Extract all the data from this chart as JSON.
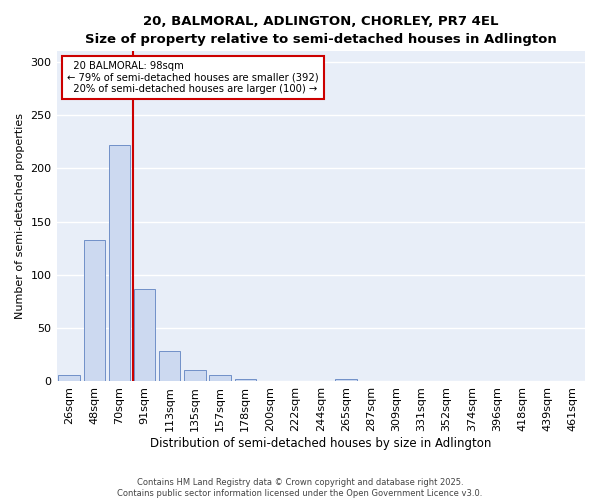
{
  "title_line1": "20, BALMORAL, ADLINGTON, CHORLEY, PR7 4EL",
  "title_line2": "Size of property relative to semi-detached houses in Adlington",
  "xlabel": "Distribution of semi-detached houses by size in Adlington",
  "ylabel": "Number of semi-detached properties",
  "categories": [
    "26sqm",
    "48sqm",
    "70sqm",
    "91sqm",
    "113sqm",
    "135sqm",
    "157sqm",
    "178sqm",
    "200sqm",
    "222sqm",
    "244sqm",
    "265sqm",
    "287sqm",
    "309sqm",
    "331sqm",
    "352sqm",
    "374sqm",
    "396sqm",
    "418sqm",
    "439sqm",
    "461sqm"
  ],
  "values": [
    6,
    133,
    222,
    87,
    29,
    11,
    6,
    2,
    0,
    0,
    0,
    2,
    0,
    0,
    0,
    0,
    0,
    0,
    0,
    0,
    0
  ],
  "bar_color": "#ccd9f0",
  "bar_edge_color": "#7090c8",
  "property_label": "20 BALMORAL: 98sqm",
  "pct_smaller": 79,
  "count_smaller": 392,
  "pct_larger": 20,
  "count_larger": 100,
  "vline_color": "#cc0000",
  "annotation_box_edge_color": "#cc0000",
  "background_color": "#e8eef8",
  "grid_color": "#ffffff",
  "ylim": [
    0,
    310
  ],
  "vline_x_index": 2.55,
  "footer_line1": "Contains HM Land Registry data © Crown copyright and database right 2025.",
  "footer_line2": "Contains public sector information licensed under the Open Government Licence v3.0."
}
